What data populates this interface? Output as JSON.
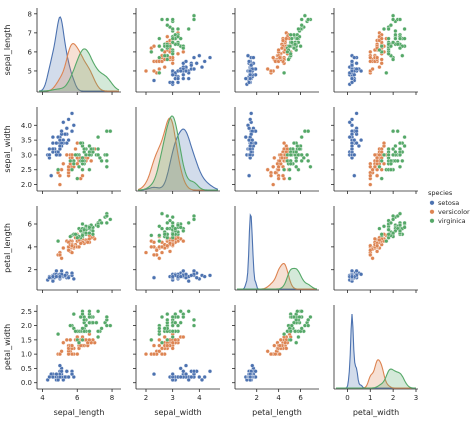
{
  "chart_data": {
    "type": "scatter",
    "subtype": "pairplot",
    "variables": [
      "sepal_length",
      "sepal_width",
      "petal_length",
      "petal_width"
    ],
    "diagonal_kind": "kde",
    "offdiagonal_kind": "scatter",
    "ticks": {
      "sepal_length": [
        4,
        6,
        8
      ],
      "sepal_width": [
        2,
        3,
        4
      ],
      "petal_length": [
        2,
        4,
        6
      ],
      "petal_width": [
        0,
        1,
        2,
        3
      ]
    },
    "y_ticks": {
      "sepal_length": [
        5,
        6,
        7,
        8
      ],
      "sepal_width": [
        2.0,
        2.5,
        3.0,
        3.5,
        4.0
      ],
      "petal_length": [
        2,
        4,
        6
      ],
      "petal_width": [
        0.0,
        0.5,
        1.0,
        1.5,
        2.0,
        2.5
      ]
    },
    "legend": {
      "title": "species",
      "placement": "right",
      "entries": [
        "setosa",
        "versicolor",
        "virginica"
      ]
    },
    "colors": {
      "setosa": "#4c72b0",
      "versicolor": "#dd8452",
      "virginica": "#55a868",
      "text": "#262626",
      "axis": "#262626"
    },
    "series": [
      {
        "name": "setosa",
        "sepal_length": [
          5.1,
          4.9,
          4.7,
          4.6,
          5.0,
          5.4,
          4.6,
          5.0,
          4.4,
          4.9,
          5.4,
          4.8,
          4.8,
          4.3,
          5.8,
          5.7,
          5.4,
          5.1,
          5.7,
          5.1,
          5.4,
          5.1,
          4.6,
          5.1,
          4.8,
          5.0,
          5.0,
          5.2,
          5.2,
          4.7,
          4.8,
          5.4,
          5.2,
          5.5,
          4.9,
          5.0,
          5.5,
          4.9,
          4.4,
          5.1,
          5.0,
          4.5,
          4.4,
          5.0,
          5.1,
          4.8,
          5.1,
          4.6,
          5.3,
          5.0
        ],
        "sepal_width": [
          3.5,
          3.0,
          3.2,
          3.1,
          3.6,
          3.9,
          3.4,
          3.4,
          2.9,
          3.1,
          3.7,
          3.4,
          3.0,
          3.0,
          4.0,
          4.4,
          3.9,
          3.5,
          3.8,
          3.8,
          3.4,
          3.7,
          3.6,
          3.3,
          3.4,
          3.0,
          3.4,
          3.5,
          3.4,
          3.2,
          3.1,
          3.4,
          4.1,
          4.2,
          3.1,
          3.2,
          3.5,
          3.6,
          3.0,
          3.4,
          3.5,
          2.3,
          3.2,
          3.5,
          3.8,
          3.0,
          3.8,
          3.2,
          3.7,
          3.3
        ],
        "petal_length": [
          1.4,
          1.4,
          1.3,
          1.5,
          1.4,
          1.7,
          1.4,
          1.5,
          1.4,
          1.5,
          1.5,
          1.6,
          1.4,
          1.1,
          1.2,
          1.5,
          1.3,
          1.4,
          1.7,
          1.5,
          1.7,
          1.5,
          1.0,
          1.7,
          1.9,
          1.6,
          1.6,
          1.5,
          1.4,
          1.6,
          1.6,
          1.5,
          1.5,
          1.4,
          1.5,
          1.2,
          1.3,
          1.4,
          1.3,
          1.5,
          1.3,
          1.3,
          1.3,
          1.6,
          1.9,
          1.4,
          1.6,
          1.4,
          1.5,
          1.4
        ],
        "petal_width": [
          0.2,
          0.2,
          0.2,
          0.2,
          0.2,
          0.4,
          0.3,
          0.2,
          0.2,
          0.1,
          0.2,
          0.2,
          0.1,
          0.1,
          0.2,
          0.4,
          0.4,
          0.3,
          0.3,
          0.3,
          0.2,
          0.4,
          0.2,
          0.5,
          0.2,
          0.2,
          0.4,
          0.2,
          0.2,
          0.2,
          0.2,
          0.4,
          0.1,
          0.2,
          0.2,
          0.2,
          0.2,
          0.1,
          0.2,
          0.2,
          0.3,
          0.3,
          0.2,
          0.6,
          0.4,
          0.3,
          0.2,
          0.2,
          0.2,
          0.2
        ]
      },
      {
        "name": "versicolor",
        "sepal_length": [
          7.0,
          6.4,
          6.9,
          5.5,
          6.5,
          5.7,
          6.3,
          4.9,
          6.6,
          5.2,
          5.0,
          5.9,
          6.0,
          6.1,
          5.6,
          6.7,
          5.6,
          5.8,
          6.2,
          5.6,
          5.9,
          6.1,
          6.3,
          6.1,
          6.4,
          6.6,
          6.8,
          6.7,
          6.0,
          5.7,
          5.5,
          5.5,
          5.8,
          6.0,
          5.4,
          6.0,
          6.7,
          6.3,
          5.6,
          5.5,
          5.5,
          6.1,
          5.8,
          5.0,
          5.6,
          5.7,
          5.7,
          6.2,
          5.1,
          5.7
        ],
        "sepal_width": [
          3.2,
          3.2,
          3.1,
          2.3,
          2.8,
          2.8,
          3.3,
          2.4,
          2.9,
          2.7,
          2.0,
          3.0,
          2.2,
          2.9,
          2.9,
          3.1,
          3.0,
          2.7,
          2.2,
          2.5,
          3.2,
          2.8,
          2.5,
          2.8,
          2.9,
          3.0,
          2.8,
          3.0,
          2.9,
          2.6,
          2.4,
          2.4,
          2.7,
          2.7,
          3.0,
          3.4,
          3.1,
          2.3,
          3.0,
          2.5,
          2.6,
          3.0,
          2.6,
          2.3,
          2.7,
          3.0,
          2.9,
          2.9,
          2.5,
          2.8
        ],
        "petal_length": [
          4.7,
          4.5,
          4.9,
          4.0,
          4.6,
          4.5,
          4.7,
          3.3,
          4.6,
          3.9,
          3.5,
          4.2,
          4.0,
          4.7,
          3.6,
          4.4,
          4.5,
          4.1,
          4.5,
          3.9,
          4.8,
          4.0,
          4.9,
          4.7,
          4.3,
          4.4,
          4.8,
          5.0,
          4.5,
          3.5,
          3.8,
          3.7,
          3.9,
          5.1,
          4.5,
          4.5,
          4.7,
          4.4,
          4.1,
          4.0,
          4.4,
          4.6,
          4.0,
          3.3,
          4.2,
          4.2,
          4.2,
          4.3,
          3.0,
          4.1
        ],
        "petal_width": [
          1.4,
          1.5,
          1.5,
          1.3,
          1.5,
          1.3,
          1.6,
          1.0,
          1.3,
          1.4,
          1.0,
          1.5,
          1.0,
          1.4,
          1.3,
          1.4,
          1.5,
          1.0,
          1.5,
          1.1,
          1.8,
          1.3,
          1.5,
          1.2,
          1.3,
          1.4,
          1.4,
          1.7,
          1.5,
          1.0,
          1.1,
          1.0,
          1.2,
          1.6,
          1.5,
          1.6,
          1.5,
          1.3,
          1.3,
          1.3,
          1.2,
          1.4,
          1.2,
          1.0,
          1.3,
          1.2,
          1.3,
          1.3,
          1.1,
          1.3
        ]
      },
      {
        "name": "virginica",
        "sepal_length": [
          6.3,
          5.8,
          7.1,
          6.3,
          6.5,
          7.6,
          4.9,
          7.3,
          6.7,
          7.2,
          6.5,
          6.4,
          6.8,
          5.7,
          5.8,
          6.4,
          6.5,
          7.7,
          7.7,
          6.0,
          6.9,
          5.6,
          7.7,
          6.3,
          6.7,
          7.2,
          6.2,
          6.1,
          6.4,
          7.2,
          7.4,
          7.9,
          6.4,
          6.3,
          6.1,
          7.7,
          6.3,
          6.4,
          6.0,
          6.9,
          6.7,
          6.9,
          5.8,
          6.8,
          6.7,
          6.7,
          6.3,
          6.5,
          6.2,
          5.9
        ],
        "sepal_width": [
          3.3,
          2.7,
          3.0,
          2.9,
          3.0,
          3.0,
          2.5,
          2.9,
          2.5,
          3.6,
          3.2,
          2.7,
          3.0,
          2.5,
          2.8,
          3.2,
          3.0,
          3.8,
          2.6,
          2.2,
          3.2,
          2.8,
          2.8,
          2.7,
          3.3,
          3.2,
          2.8,
          3.0,
          2.8,
          3.0,
          2.8,
          3.8,
          2.8,
          2.8,
          2.6,
          3.0,
          3.4,
          3.1,
          3.0,
          3.1,
          3.1,
          3.1,
          2.7,
          3.2,
          3.3,
          3.0,
          2.5,
          3.0,
          3.4,
          3.0
        ],
        "petal_length": [
          6.0,
          5.1,
          5.9,
          5.6,
          5.8,
          6.6,
          4.5,
          6.3,
          5.8,
          6.1,
          5.1,
          5.3,
          5.5,
          5.0,
          5.1,
          5.3,
          5.5,
          6.7,
          6.9,
          5.0,
          5.7,
          4.9,
          6.7,
          4.9,
          5.7,
          6.0,
          4.8,
          4.9,
          5.6,
          5.8,
          6.1,
          6.4,
          5.6,
          5.1,
          5.6,
          6.1,
          5.6,
          5.5,
          4.8,
          5.4,
          5.6,
          5.1,
          5.1,
          5.9,
          5.7,
          5.2,
          5.0,
          5.2,
          5.4,
          5.1
        ],
        "petal_width": [
          2.5,
          1.9,
          2.1,
          1.8,
          2.2,
          2.1,
          1.7,
          1.8,
          1.8,
          2.5,
          2.0,
          1.9,
          2.1,
          2.0,
          2.4,
          2.3,
          1.8,
          2.2,
          2.3,
          1.5,
          2.3,
          2.0,
          2.0,
          1.8,
          2.1,
          1.8,
          1.8,
          1.8,
          2.1,
          1.6,
          1.9,
          2.0,
          2.2,
          1.5,
          1.4,
          2.3,
          2.4,
          1.8,
          1.8,
          2.1,
          2.4,
          2.3,
          1.9,
          2.3,
          2.5,
          2.3,
          1.9,
          2.0,
          2.3,
          1.8
        ]
      }
    ]
  }
}
